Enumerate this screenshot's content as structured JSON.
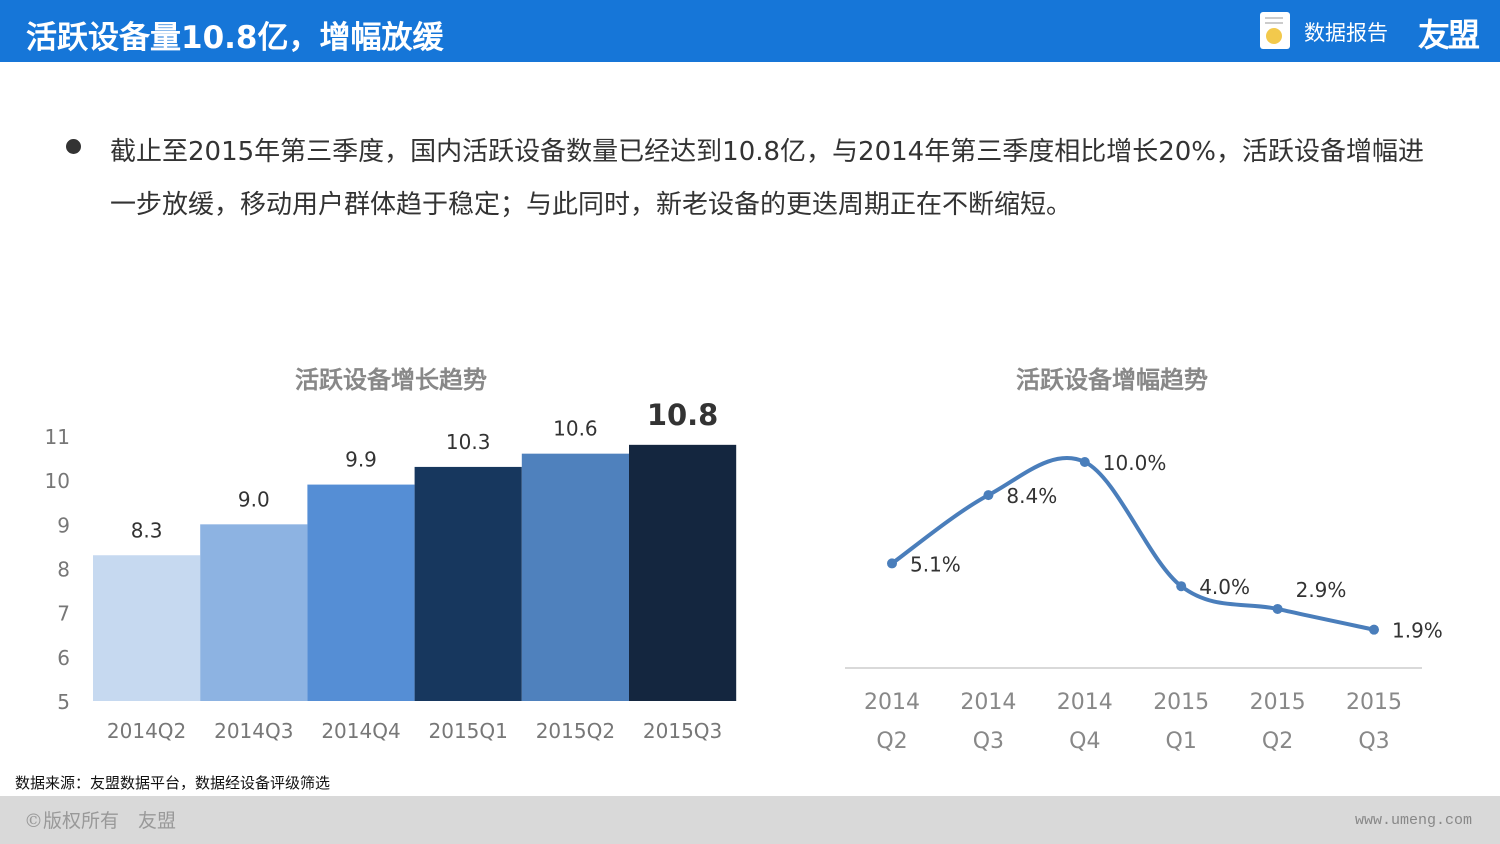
{
  "header": {
    "title": "活跃设备量10.8亿，增幅放缓",
    "report_label": "数据报告",
    "logo": "友盟",
    "report_icon": "document-pie-icon"
  },
  "body": {
    "text": "截止至2015年第三季度，国内活跃设备数量已经达到10.8亿，与2014年第三季度相比增长20%，活跃设备增幅进一步放缓，移动用户群体趋于稳定；与此同时，新老设备的更迭周期正在不断缩短。"
  },
  "chart_data": [
    {
      "type": "bar",
      "title": "活跃设备增长趋势",
      "categories": [
        "2014Q2",
        "2014Q3",
        "2014Q4",
        "2015Q1",
        "2015Q2",
        "2015Q3"
      ],
      "values": [
        8.3,
        9.0,
        9.9,
        10.3,
        10.6,
        10.8
      ],
      "labels": [
        "8.3",
        "9.0",
        "9.9",
        "10.3",
        "10.6",
        "10.8"
      ],
      "colors": [
        "#c6d9f0",
        "#8db3e2",
        "#558ed5",
        "#17375e",
        "#4f81bd",
        "#14263f"
      ],
      "ylim": [
        5,
        11
      ],
      "yticks": [
        "5",
        "6",
        "7",
        "8",
        "9",
        "10",
        "11"
      ],
      "grid": false
    },
    {
      "type": "line",
      "title": "活跃设备增幅趋势",
      "categories": [
        [
          "2014",
          "Q2"
        ],
        [
          "2014",
          "Q3"
        ],
        [
          "2014",
          "Q4"
        ],
        [
          "2015",
          "Q1"
        ],
        [
          "2015",
          "Q2"
        ],
        [
          "2015",
          "Q3"
        ]
      ],
      "values": [
        5.1,
        8.4,
        10.0,
        4.0,
        2.9,
        1.9
      ],
      "labels": [
        "5.1%",
        "8.4%",
        "10.0%",
        "4.0%",
        "2.9%",
        "1.9%"
      ],
      "color": "#4a7ebb",
      "ylim": [
        0,
        10.5
      ],
      "grid": false
    }
  ],
  "source": "数据来源：友盟数据平台，数据经设备评级筛选",
  "footer": {
    "copyright": "©版权所有　友盟",
    "site": "www.umeng.com"
  }
}
